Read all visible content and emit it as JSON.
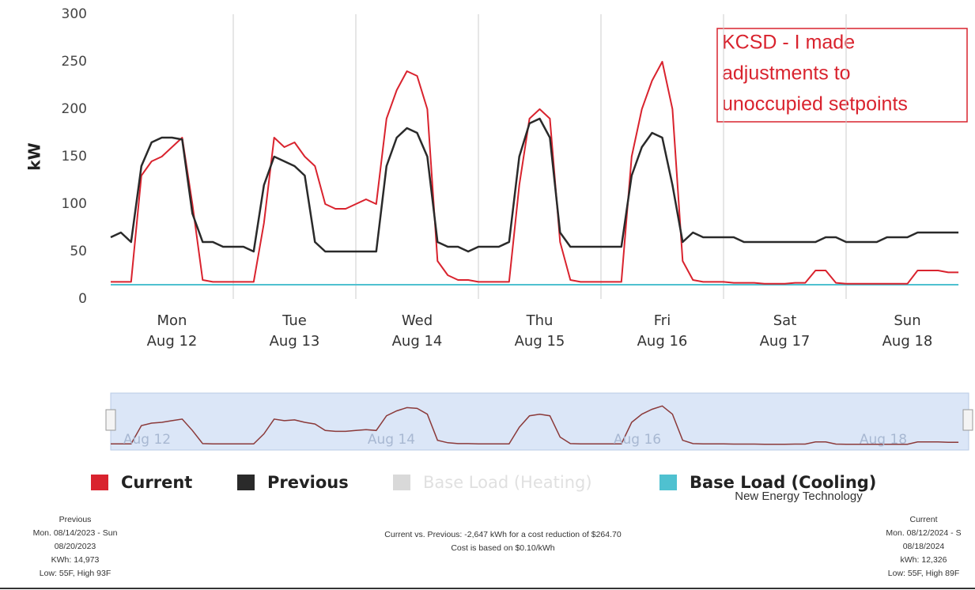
{
  "chart_data": {
    "type": "line",
    "ylabel": "kW",
    "categories": [
      [
        "Mon",
        "Aug 12"
      ],
      [
        "Tue",
        "Aug 13"
      ],
      [
        "Wed",
        "Aug 14"
      ],
      [
        "Thu",
        "Aug 15"
      ],
      [
        "Fri",
        "Aug 16"
      ],
      [
        "Sat",
        "Aug 17"
      ],
      [
        "Sun",
        "Aug 18"
      ]
    ],
    "ylim": [
      0,
      300
    ],
    "yticks": [
      0,
      50,
      100,
      150,
      200,
      250,
      300
    ],
    "grid": false,
    "series": [
      {
        "name": "Current",
        "color": "#d9232e",
        "values": [
          [
            18,
            18,
            18,
            130,
            145,
            150,
            160,
            170,
            100,
            20,
            18,
            18
          ],
          [
            18,
            18,
            18,
            80,
            170,
            160,
            165,
            150,
            140,
            100,
            95,
            95
          ],
          [
            100,
            105,
            100,
            190,
            220,
            240,
            235,
            200,
            40,
            25,
            20,
            20
          ],
          [
            18,
            18,
            18,
            18,
            120,
            190,
            200,
            190,
            60,
            20,
            18,
            18
          ],
          [
            18,
            18,
            18,
            150,
            200,
            230,
            250,
            200,
            40,
            20,
            18,
            18
          ],
          [
            18,
            17,
            17,
            17,
            16,
            16,
            16,
            17,
            17,
            30,
            30,
            17
          ],
          [
            16,
            16,
            16,
            16,
            16,
            16,
            16,
            30,
            30,
            30,
            28,
            28
          ]
        ]
      },
      {
        "name": "Previous",
        "color": "#2a2a2a",
        "values": [
          [
            65,
            70,
            60,
            140,
            165,
            170,
            170,
            168,
            90,
            60,
            60,
            55
          ],
          [
            55,
            55,
            50,
            120,
            150,
            145,
            140,
            130,
            60,
            50,
            50,
            50
          ],
          [
            50,
            50,
            50,
            140,
            170,
            180,
            175,
            150,
            60,
            55,
            55,
            50
          ],
          [
            55,
            55,
            55,
            60,
            150,
            185,
            190,
            170,
            70,
            55,
            55,
            55
          ],
          [
            55,
            55,
            55,
            130,
            160,
            175,
            170,
            120,
            60,
            70,
            65,
            65
          ],
          [
            65,
            65,
            60,
            60,
            60,
            60,
            60,
            60,
            60,
            60,
            65,
            65
          ],
          [
            60,
            60,
            60,
            60,
            65,
            65,
            65,
            70,
            70,
            70,
            70,
            70
          ]
        ]
      },
      {
        "name": "Base Load (Heating)",
        "color": "#d9d9d9"
      },
      {
        "name": "Base Load (Cooling)",
        "color": "#4fc1d0",
        "values": [
          [
            15,
            15,
            15,
            15,
            15,
            15,
            15,
            15,
            15,
            15,
            15,
            15
          ],
          [
            15,
            15,
            15,
            15,
            15,
            15,
            15,
            15,
            15,
            15,
            15,
            15
          ],
          [
            15,
            15,
            15,
            15,
            15,
            15,
            15,
            15,
            15,
            15,
            15,
            15
          ],
          [
            15,
            15,
            15,
            15,
            15,
            15,
            15,
            15,
            15,
            15,
            15,
            15
          ],
          [
            15,
            15,
            15,
            15,
            15,
            15,
            15,
            15,
            15,
            15,
            15,
            15
          ],
          [
            15,
            15,
            15,
            15,
            15,
            15,
            15,
            15,
            15,
            15,
            15,
            15
          ],
          [
            15,
            15,
            15,
            15,
            15,
            15,
            15,
            15,
            15,
            15,
            15,
            15
          ]
        ]
      }
    ],
    "annotation": [
      "KCSD - I made",
      "adjustments to",
      "unoccupied setpoints"
    ],
    "navigator_labels": [
      "Aug 12",
      "Aug 14",
      "Aug 16",
      "Aug 18"
    ]
  },
  "footer": {
    "company": "New Energy Technology",
    "previous": [
      "Previous",
      "Mon. 08/14/2023 - Sun",
      "08/20/2023",
      "KWh: 14,973",
      "Low: 55F, High 93F"
    ],
    "comparison": [
      "Current vs. Previous: -2,647 kWh for a cost reduction of $264.70",
      "Cost is based on $0.10/kWh"
    ],
    "current": [
      "Current",
      "Mon. 08/12/2024 - S",
      "08/18/2024",
      "kWh: 12,326",
      "Low: 55F, High 89F"
    ]
  }
}
